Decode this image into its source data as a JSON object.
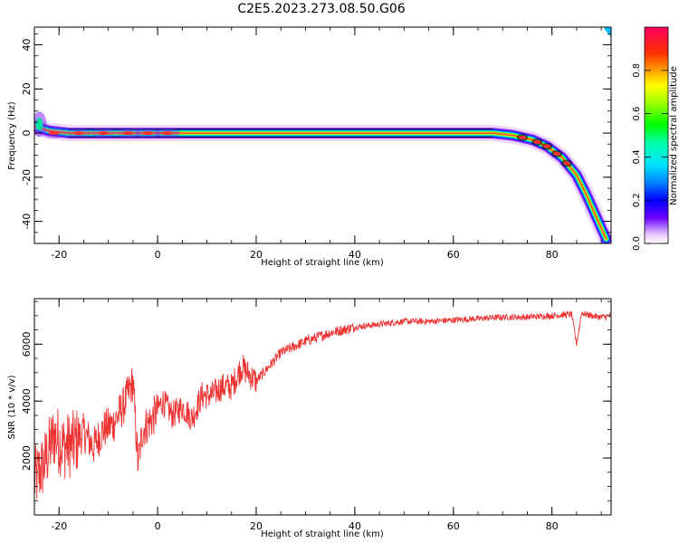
{
  "title": "C2E5.2023.273.08.50.G06",
  "chart_data": [
    {
      "type": "heatmap",
      "xlabel": "Height of straight line (km)",
      "ylabel": "Frequency (Hz)",
      "xlim": [
        -25,
        92
      ],
      "ylim": [
        -50,
        48
      ],
      "xticks": [
        -20,
        0,
        20,
        40,
        60,
        80
      ],
      "yticks": [
        -40,
        -20,
        0,
        20,
        40
      ],
      "ridge": [
        {
          "x": -25,
          "y": 3
        },
        {
          "x": -22,
          "y": 1
        },
        {
          "x": -18,
          "y": 0
        },
        {
          "x": 0,
          "y": 0
        },
        {
          "x": 20,
          "y": 0
        },
        {
          "x": 40,
          "y": 0
        },
        {
          "x": 60,
          "y": 0
        },
        {
          "x": 68,
          "y": 0
        },
        {
          "x": 72,
          "y": -1
        },
        {
          "x": 76,
          "y": -3
        },
        {
          "x": 79,
          "y": -6
        },
        {
          "x": 82,
          "y": -11
        },
        {
          "x": 85,
          "y": -19
        },
        {
          "x": 87,
          "y": -28
        },
        {
          "x": 89,
          "y": -38
        },
        {
          "x": 91,
          "y": -48
        }
      ],
      "colorbar": {
        "label": "Normalized spectral amplitude",
        "range": [
          0,
          1
        ],
        "ticks": [
          "0.0",
          "0.2",
          "0.4",
          "0.6",
          "0.8"
        ]
      }
    },
    {
      "type": "line",
      "xlabel": "Height of straight line (km)",
      "ylabel": "SNR (10 * v/v)",
      "xlim": [
        -25,
        92
      ],
      "ylim": [
        0,
        7600
      ],
      "xticks": [
        -20,
        0,
        20,
        40,
        60,
        80
      ],
      "yticks": [
        2000,
        4000,
        6000
      ],
      "color": "#ee3333",
      "series": [
        {
          "x": [
            -25,
            -23,
            -21,
            -20,
            -19,
            -17,
            -15,
            -13,
            -11,
            -9,
            -7,
            -5,
            -4,
            -3,
            -1,
            0,
            1,
            3,
            5,
            7,
            9,
            11,
            13,
            15,
            17,
            20,
            25,
            30,
            35,
            40,
            45,
            50,
            55,
            60,
            65,
            70,
            75,
            80,
            84,
            85,
            86,
            88,
            90,
            92
          ],
          "y": [
            1200,
            1800,
            2800,
            2600,
            2400,
            2500,
            2900,
            2400,
            3000,
            3200,
            3800,
            4700,
            1800,
            3000,
            3400,
            3700,
            4000,
            3500,
            3800,
            3400,
            4200,
            4200,
            4500,
            4500,
            5200,
            4700,
            5700,
            6100,
            6400,
            6600,
            6700,
            6800,
            6800,
            6850,
            6900,
            6950,
            6950,
            7000,
            7050,
            6000,
            7100,
            7000,
            6950,
            7000
          ]
        }
      ]
    }
  ]
}
